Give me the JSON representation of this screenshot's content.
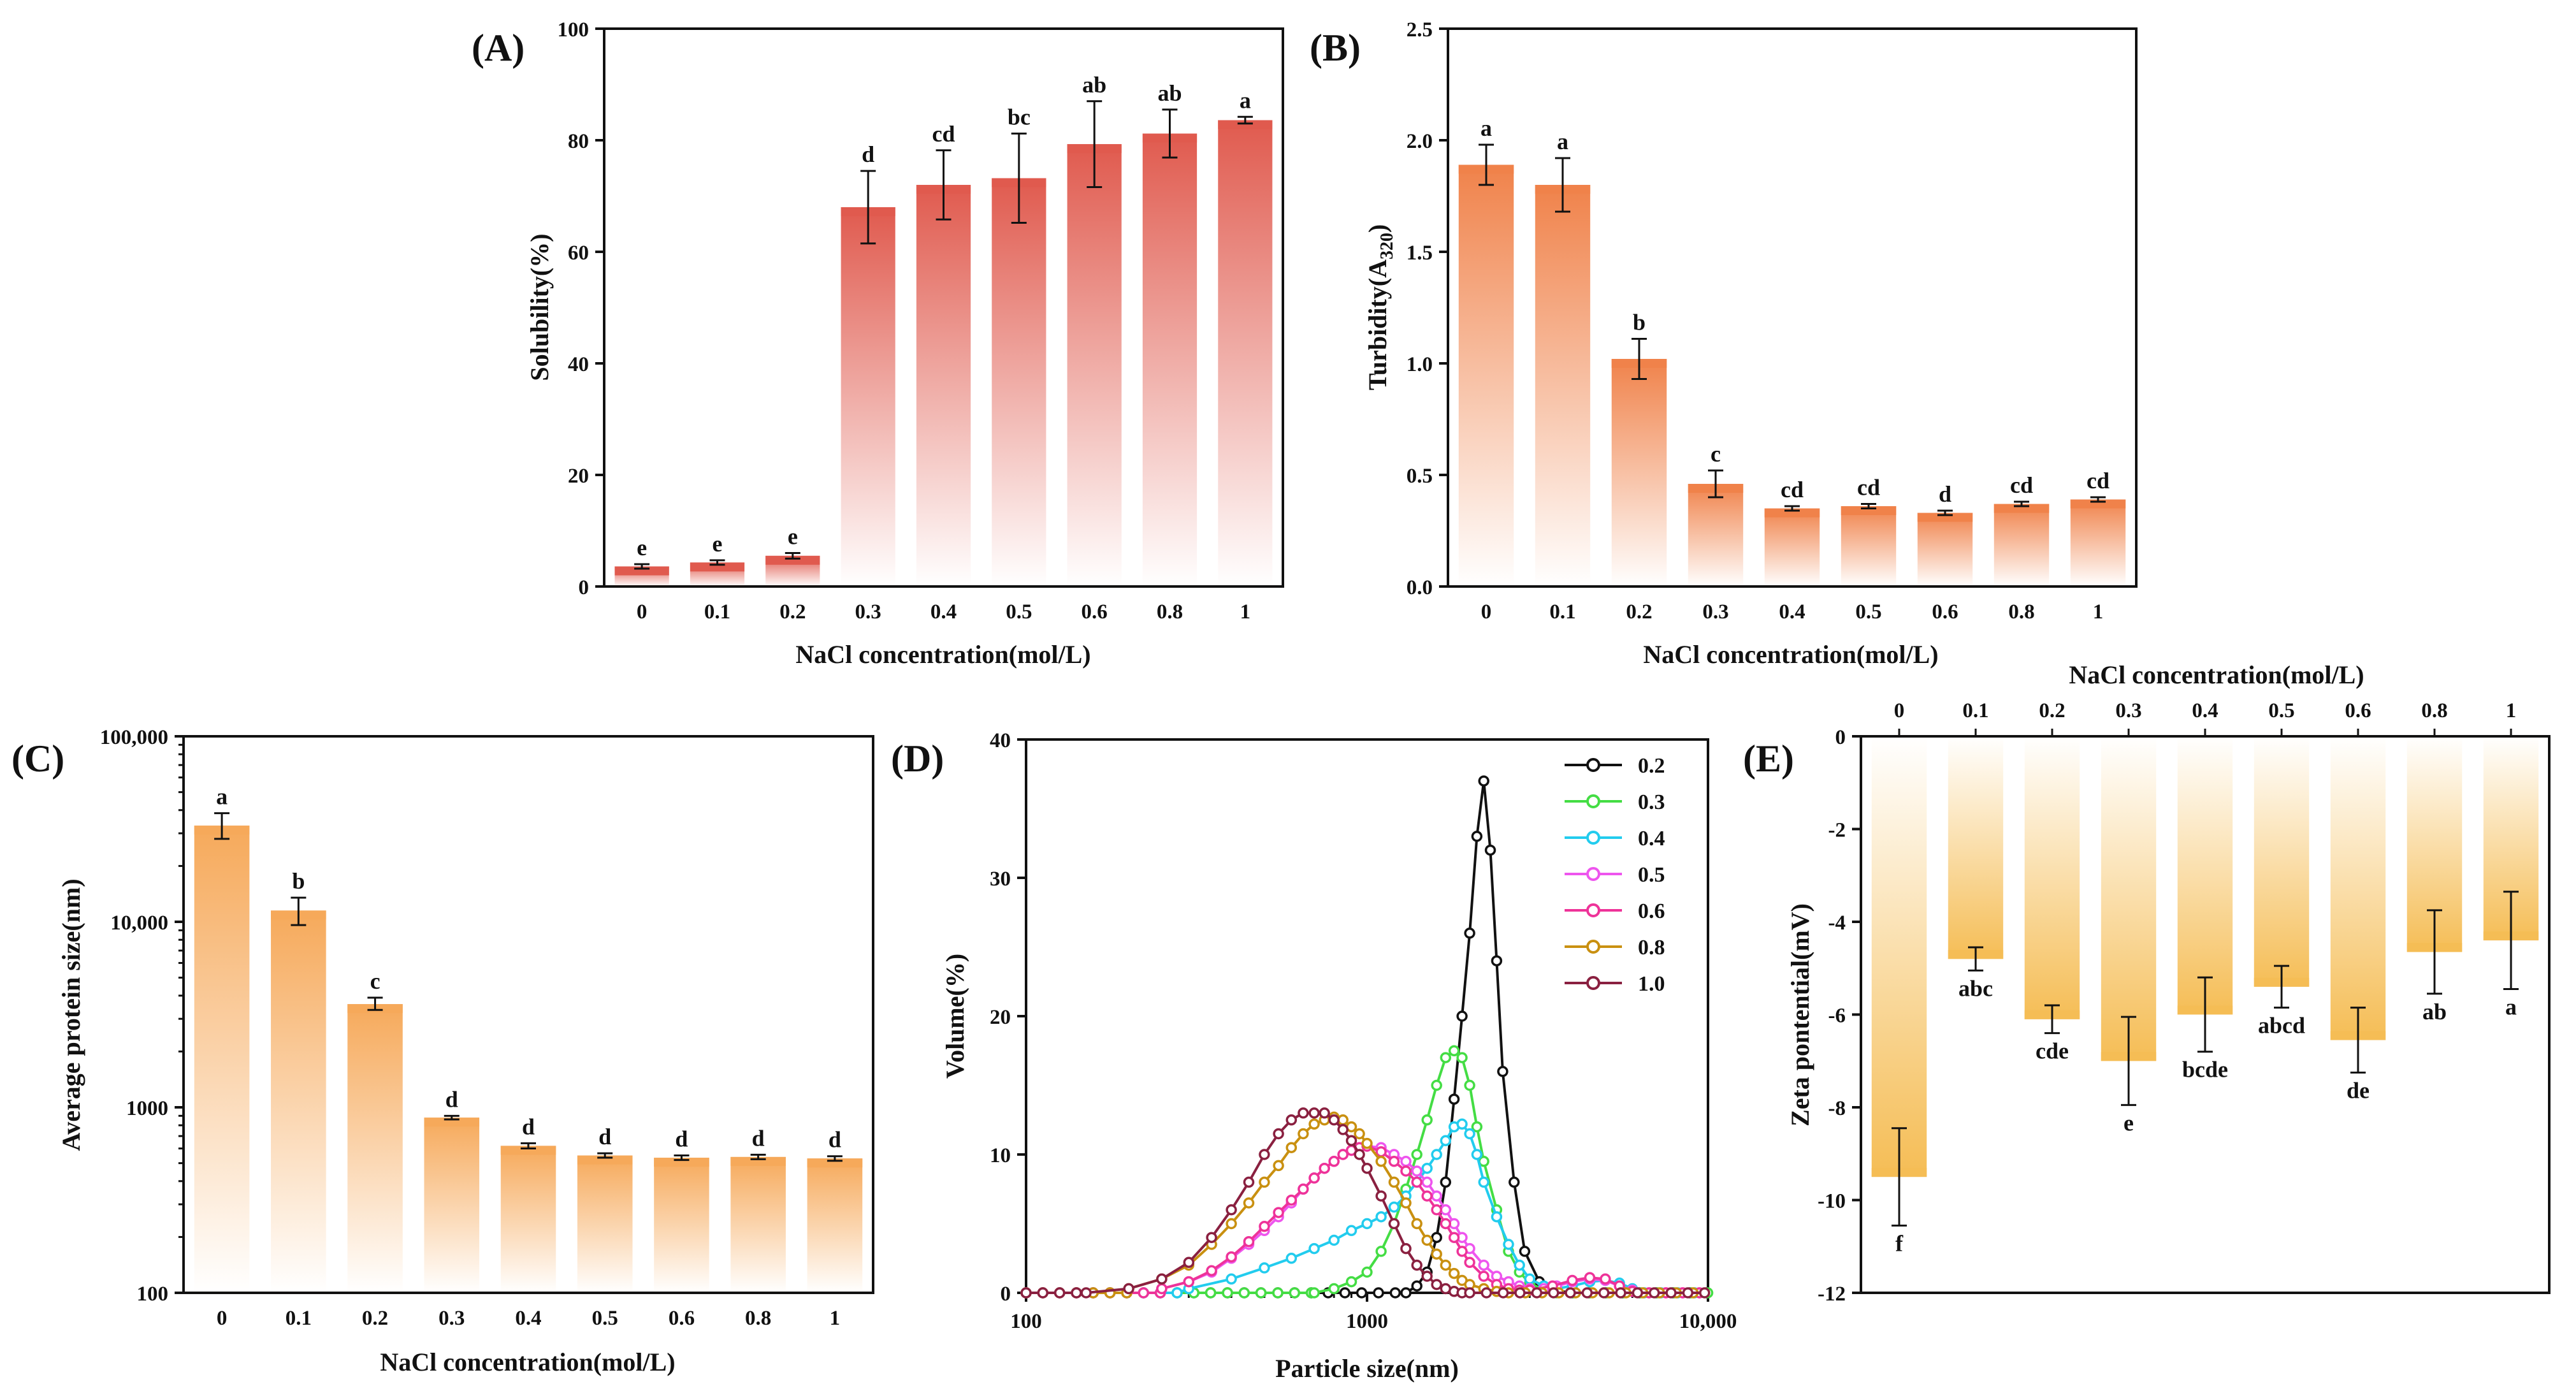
{
  "chart_data": [
    {
      "id": "A",
      "panel_label": "(A)",
      "type": "bar",
      "categories": [
        "0",
        "0.1",
        "0.2",
        "0.3",
        "0.4",
        "0.5",
        "0.6",
        "0.8",
        "1"
      ],
      "values": [
        3.6,
        4.3,
        5.5,
        68.0,
        72.0,
        73.2,
        79.3,
        81.2,
        83.6
      ],
      "errors": [
        0.4,
        0.4,
        0.5,
        6.5,
        6.2,
        8.0,
        7.7,
        4.3,
        0.6
      ],
      "letters": [
        "e",
        "e",
        "e",
        "d",
        "cd",
        "bc",
        "ab",
        "ab",
        "a"
      ],
      "xlabel": "NaCl concentration(mol/L)",
      "ylabel": "Solubility(%)",
      "ylim": [
        0,
        100
      ],
      "yticks": [
        "0",
        "20",
        "40",
        "60",
        "80",
        "100"
      ],
      "ytick_values": [
        0,
        20,
        40,
        60,
        80,
        100
      ],
      "color": "#e05a4e"
    },
    {
      "id": "B",
      "panel_label": "(B)",
      "type": "bar",
      "categories": [
        "0",
        "0.1",
        "0.2",
        "0.3",
        "0.4",
        "0.5",
        "0.6",
        "0.8",
        "1"
      ],
      "values": [
        1.89,
        1.8,
        1.02,
        0.46,
        0.35,
        0.36,
        0.33,
        0.37,
        0.39
      ],
      "errors": [
        0.09,
        0.12,
        0.09,
        0.06,
        0.01,
        0.01,
        0.01,
        0.01,
        0.01
      ],
      "letters": [
        "a",
        "a",
        "b",
        "c",
        "cd",
        "cd",
        "d",
        "cd",
        "cd"
      ],
      "xlabel": "NaCl concentration(mol/L)",
      "ylabel_main": "Turbidity(A",
      "ylabel_sub": "320",
      "ylabel_end": ")",
      "ylim": [
        0,
        2.5
      ],
      "yticks": [
        "0.0",
        "0.5",
        "1.0",
        "1.5",
        "2.0",
        "2.5"
      ],
      "ytick_values": [
        0,
        0.5,
        1.0,
        1.5,
        2.0,
        2.5
      ],
      "color": "#f0824a"
    },
    {
      "id": "C",
      "panel_label": "(C)",
      "type": "bar",
      "yscale": "log",
      "categories": [
        "0",
        "0.1",
        "0.2",
        "0.3",
        "0.4",
        "0.5",
        "0.6",
        "0.8",
        "1"
      ],
      "values": [
        33000,
        11500,
        3600,
        880,
        620,
        550,
        535,
        540,
        530
      ],
      "err_low": [
        28000,
        9600,
        3350,
        860,
        600,
        535,
        520,
        525,
        515
      ],
      "err_high": [
        38500,
        13500,
        3900,
        900,
        640,
        565,
        550,
        555,
        545
      ],
      "letters": [
        "a",
        "b",
        "c",
        "d",
        "d",
        "d",
        "d",
        "d",
        "d"
      ],
      "xlabel": "NaCl concentration(mol/L)",
      "ylabel": "Average protein size(nm)",
      "ylim": [
        100,
        100000
      ],
      "yticks": [
        "100",
        "1000",
        "10,000",
        "100,000"
      ],
      "ytick_values": [
        100,
        1000,
        10000,
        100000
      ],
      "color": "#f6a95a"
    },
    {
      "id": "D",
      "panel_label": "(D)",
      "type": "line",
      "xscale": "log",
      "xlabel": "Particle size(nm)",
      "ylabel": "Volume(%)",
      "xlim": [
        100,
        10000
      ],
      "ylim": [
        0,
        40
      ],
      "xticks": [
        "100",
        "1000",
        "10,000"
      ],
      "xtick_values": [
        100,
        1000,
        10000
      ],
      "yticks": [
        "0",
        "10",
        "20",
        "30",
        "40"
      ],
      "ytick_values": [
        0,
        10,
        20,
        30,
        40
      ],
      "series": [
        {
          "name": "0.2",
          "color": "#111111",
          "x": [
            1300,
            1400,
            1500,
            1600,
            1700,
            1800,
            1900,
            2000,
            2100,
            2200,
            2300,
            2400,
            2500,
            2700,
            2900,
            3200,
            3500,
            4000
          ],
          "y": [
            0,
            0.5,
            1.5,
            4,
            8,
            14,
            20,
            26,
            33,
            37,
            32,
            24,
            16,
            8,
            3,
            0.8,
            0.2,
            0
          ]
        },
        {
          "name": "0.3",
          "color": "#44dd44",
          "x": [
            700,
            800,
            900,
            1000,
            1100,
            1200,
            1300,
            1400,
            1500,
            1600,
            1700,
            1800,
            1900,
            2000,
            2100,
            2200,
            2400,
            2600,
            2800,
            3000,
            3300,
            3600
          ],
          "y": [
            0,
            0.3,
            0.8,
            1.5,
            3,
            5,
            7.5,
            10,
            12.5,
            15,
            17,
            17.5,
            17,
            15,
            12,
            9.5,
            6,
            3,
            1.5,
            0.7,
            0.2,
            0
          ]
        },
        {
          "name": "0.4",
          "color": "#22ccee",
          "x": [
            300,
            400,
            500,
            600,
            700,
            800,
            900,
            1000,
            1100,
            1200,
            1300,
            1400,
            1500,
            1600,
            1700,
            1800,
            1900,
            2000,
            2100,
            2200,
            2400,
            2600,
            2800,
            3000,
            3300,
            3600,
            4000,
            4500,
            5000,
            5500,
            6000,
            6500
          ],
          "y": [
            0.3,
            1,
            1.8,
            2.5,
            3.2,
            3.8,
            4.5,
            5,
            5.5,
            6.2,
            7,
            8,
            9,
            10,
            11,
            12,
            12.2,
            11.5,
            10,
            8,
            5.5,
            3.5,
            2,
            1,
            0.5,
            0.3,
            0.5,
            0.8,
            0.9,
            0.7,
            0.3,
            0
          ]
        },
        {
          "name": "0.5",
          "color": "#ee55ee",
          "x": [
            250,
            300,
            350,
            400,
            450,
            500,
            550,
            600,
            650,
            700,
            750,
            800,
            850,
            900,
            950,
            1000,
            1100,
            1200,
            1300,
            1400,
            1500,
            1600,
            1700,
            1800,
            1900,
            2000,
            2200,
            2400,
            2600,
            2800,
            3000,
            3300,
            3600,
            4000,
            4500,
            5000,
            5500,
            6000
          ],
          "y": [
            0.3,
            0.8,
            1.5,
            2.5,
            3.5,
            4.5,
            5.5,
            6.5,
            7.5,
            8.3,
            9,
            9.5,
            10,
            10.3,
            10.5,
            10.6,
            10.5,
            10,
            9.5,
            8.8,
            8,
            7,
            6,
            5,
            4,
            3.2,
            2,
            1.2,
            0.8,
            0.5,
            0.3,
            0.3,
            0.5,
            0.8,
            1,
            0.9,
            0.5,
            0.2
          ]
        },
        {
          "name": "0.6",
          "color": "#ee3399",
          "x": [
            250,
            300,
            350,
            400,
            450,
            500,
            550,
            600,
            650,
            700,
            750,
            800,
            850,
            900,
            950,
            1000,
            1100,
            1200,
            1300,
            1400,
            1500,
            1600,
            1700,
            1800,
            1900,
            2000,
            2200,
            2400,
            2600,
            2800,
            3000,
            3500,
            4000,
            4500,
            5000,
            5500,
            6000
          ],
          "y": [
            0.3,
            0.8,
            1.6,
            2.6,
            3.7,
            4.8,
            5.8,
            6.7,
            7.5,
            8.3,
            9,
            9.5,
            10,
            10.3,
            10.5,
            10.6,
            10.2,
            9.5,
            8.8,
            8,
            7,
            6,
            5,
            4,
            3,
            2.2,
            1.2,
            0.6,
            0.3,
            0.2,
            0.2,
            0.5,
            0.9,
            1.1,
            1,
            0.5,
            0.1
          ]
        },
        {
          "name": "0.8",
          "color": "#c99010",
          "x": [
            200,
            250,
            300,
            350,
            400,
            450,
            500,
            550,
            600,
            650,
            700,
            750,
            800,
            850,
            900,
            950,
            1000,
            1100,
            1200,
            1300,
            1400,
            1500,
            1600,
            1700,
            1800,
            1900,
            2000,
            2200,
            2400,
            2600
          ],
          "y": [
            0.3,
            1,
            2,
            3.5,
            5,
            6.5,
            8,
            9.2,
            10.5,
            11.5,
            12.2,
            12.5,
            12.7,
            12.5,
            12,
            11.5,
            10.8,
            9.5,
            8,
            6.5,
            5,
            3.8,
            2.8,
            2,
            1.4,
            0.9,
            0.6,
            0.3,
            0.1,
            0
          ]
        },
        {
          "name": "1.0",
          "color": "#8a2040",
          "x": [
            150,
            200,
            250,
            300,
            350,
            400,
            450,
            500,
            550,
            600,
            650,
            700,
            750,
            800,
            850,
            900,
            950,
            1000,
            1100,
            1200,
            1300,
            1400,
            1500,
            1600,
            1700,
            1800,
            1900,
            2000
          ],
          "y": [
            0,
            0.3,
            1,
            2.2,
            4,
            6,
            8,
            10,
            11.5,
            12.5,
            13,
            13,
            13,
            12.5,
            11.8,
            11,
            10,
            9,
            7,
            5,
            3.2,
            2,
            1.2,
            0.6,
            0.3,
            0.1,
            0,
            0
          ]
        }
      ]
    },
    {
      "id": "E",
      "panel_label": "(E)",
      "type": "bar",
      "categories": [
        "0",
        "0.1",
        "0.2",
        "0.3",
        "0.4",
        "0.5",
        "0.6",
        "0.8",
        "1"
      ],
      "values": [
        -9.5,
        -4.8,
        -6.1,
        -7.0,
        -6.0,
        -5.4,
        -6.55,
        -4.65,
        -4.4
      ],
      "errors": [
        1.05,
        0.25,
        0.3,
        0.95,
        0.8,
        0.45,
        0.7,
        0.9,
        1.05
      ],
      "letters": [
        "f",
        "abc",
        "cde",
        "e",
        "bcde",
        "abcd",
        "de",
        "ab",
        "a"
      ],
      "xlabel": "NaCl concentration(mol/L)",
      "ylabel": "Zeta pontential(mV)",
      "ylim": [
        -12,
        0
      ],
      "yticks": [
        "0",
        "-2",
        "-4",
        "-6",
        "-8",
        "-10",
        "-12"
      ],
      "ytick_values": [
        0,
        -2,
        -4,
        -6,
        -8,
        -10,
        -12
      ],
      "color": "#f5bd55"
    }
  ]
}
